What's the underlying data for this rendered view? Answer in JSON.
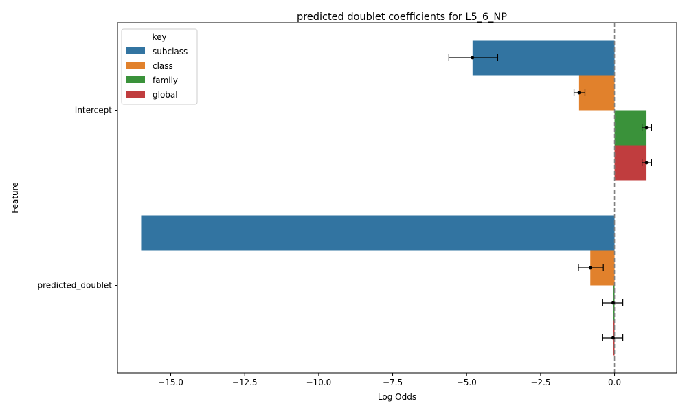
{
  "chart_data": {
    "type": "bar",
    "orientation": "horizontal",
    "title": "predicted doublet coefficients for L5_6_NP",
    "xlabel": "Log Odds",
    "ylabel": "Feature",
    "xlim": [
      -16.8,
      2.1
    ],
    "xticks": [
      -15.0,
      -12.5,
      -10.0,
      -7.5,
      -5.0,
      -2.5,
      0.0
    ],
    "xtick_labels": [
      "−15.0",
      "−12.5",
      "−10.0",
      "−7.5",
      "−5.0",
      "−2.5",
      "0.0"
    ],
    "categories": [
      "Intercept",
      "predicted_doublet"
    ],
    "reference_line": {
      "x": 0,
      "style": "dashed",
      "color": "#808080"
    },
    "legend": {
      "title": "key",
      "position": "upper-left"
    },
    "grid": false,
    "series": [
      {
        "name": "subclass",
        "color": "#3274a1",
        "values": [
          -4.8,
          -16.0
        ],
        "ci": [
          [
            -5.6,
            -3.95
          ],
          null
        ]
      },
      {
        "name": "class",
        "color": "#e1812c",
        "values": [
          -1.2,
          -0.82
        ],
        "ci": [
          [
            -1.37,
            -1.0
          ],
          [
            -1.22,
            -0.38
          ]
        ]
      },
      {
        "name": "family",
        "color": "#3a923a",
        "values": [
          1.08,
          -0.05
        ],
        "ci": [
          [
            0.93,
            1.25
          ],
          [
            -0.4,
            0.28
          ]
        ]
      },
      {
        "name": "global",
        "color": "#c03d3e",
        "values": [
          1.08,
          -0.05
        ],
        "ci": [
          [
            0.93,
            1.25
          ],
          [
            -0.4,
            0.28
          ]
        ]
      }
    ]
  }
}
